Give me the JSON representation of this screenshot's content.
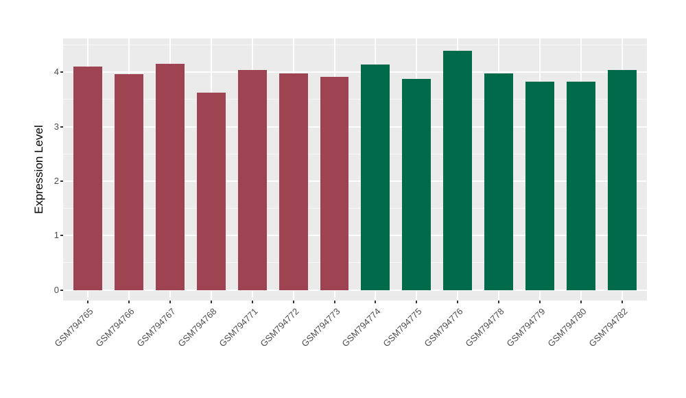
{
  "chart_data": {
    "type": "bar",
    "title": "",
    "xlabel": "",
    "ylabel": "Expression Level",
    "categories": [
      "GSM794765",
      "GSM794766",
      "GSM794767",
      "GSM794768",
      "GSM794771",
      "GSM794772",
      "GSM794773",
      "GSM794774",
      "GSM794775",
      "GSM794776",
      "GSM794778",
      "GSM794779",
      "GSM794780",
      "GSM794782"
    ],
    "values": [
      4.1,
      3.96,
      4.15,
      3.63,
      4.04,
      3.98,
      3.92,
      4.14,
      3.88,
      4.39,
      3.98,
      3.83,
      3.83,
      4.04
    ],
    "groups": [
      "group1",
      "group1",
      "group1",
      "group1",
      "group1",
      "group1",
      "group1",
      "group2",
      "group2",
      "group2",
      "group2",
      "group2",
      "group2",
      "group2"
    ],
    "group_colors": {
      "group1": "#9E4352",
      "group2": "#006A4B"
    },
    "y_ticks": [
      0,
      1,
      2,
      3,
      4
    ],
    "y_minor_ticks": [
      0.5,
      1.5,
      2.5,
      3.5,
      4.5
    ],
    "ylim": [
      -0.195,
      4.62
    ],
    "bar_rel_width": 0.7,
    "axis_expand": 0.6,
    "grid": "on",
    "legend_position": "none",
    "style": {
      "figure_bg": "#FFFFFF",
      "panel_bg": "#EBEBEB",
      "grid_major": "#FFFFFF",
      "grid_minor": "#F7F7F7",
      "axis_text": "#4D4D4D",
      "axis_title": "#000000",
      "tick_mark": "#333333"
    }
  }
}
